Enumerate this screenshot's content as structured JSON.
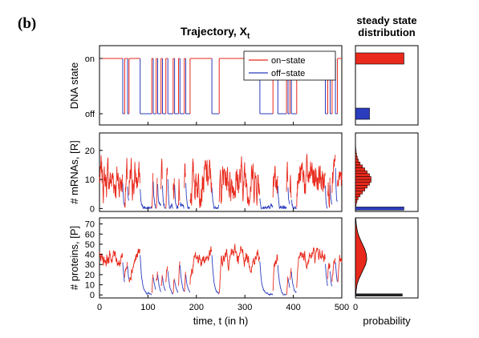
{
  "panel_label": "(b)",
  "colors": {
    "on": "#e8291c",
    "off": "#2b3dbd",
    "hist_on": "#e8291c",
    "hist_off": "#2b3dbd"
  },
  "chart_data": [
    {
      "id": "traj-dna",
      "type": "line",
      "title": "Trajectory, X",
      "title_subscript": "t",
      "ylabel": "DNA state",
      "xlim": [
        0,
        500
      ],
      "ytick_labels": [
        "on",
        "off"
      ],
      "legend": {
        "placement": "top-right",
        "entries": [
          "on−state",
          "off−state"
        ]
      },
      "x": [
        0,
        48,
        52,
        58,
        61,
        70,
        84,
        108,
        111,
        117,
        120,
        127,
        130,
        137,
        141,
        152,
        155,
        163,
        166,
        175,
        178,
        187,
        232,
        247,
        331,
        358,
        368,
        386,
        389,
        393,
        396,
        407,
        421,
        466,
        471,
        476,
        480,
        487,
        491,
        500
      ],
      "state": [
        1,
        0,
        1,
        0,
        1,
        1,
        0,
        1,
        0,
        1,
        0,
        1,
        0,
        1,
        0,
        1,
        0,
        1,
        0,
        1,
        0,
        1,
        0,
        1,
        0,
        1,
        0,
        1,
        0,
        1,
        0,
        1,
        1,
        0,
        1,
        0,
        1,
        0,
        1,
        1
      ]
    },
    {
      "id": "traj-mrna",
      "type": "line",
      "ylabel": "# mRNAs, [R]",
      "xlim": [
        0,
        500
      ],
      "ylim": [
        -1,
        26
      ],
      "yticks": [
        0,
        10,
        20
      ]
    },
    {
      "id": "traj-protein",
      "type": "line",
      "ylabel": "# proteins, [P]",
      "xlabel": "time, t (in h)",
      "xlim": [
        0,
        500
      ],
      "ylim": [
        -3,
        76
      ],
      "xticks": [
        0,
        100,
        200,
        300,
        400,
        500
      ],
      "yticks": [
        0,
        10,
        20,
        30,
        40,
        50,
        60,
        70
      ]
    },
    {
      "id": "ss-dna",
      "type": "bar",
      "title": "steady state distribution",
      "categories": [
        "on",
        "off"
      ],
      "values": [
        0.62,
        0.18
      ]
    },
    {
      "id": "ss-mrna",
      "type": "bar",
      "bins": [
        0,
        1,
        2,
        3,
        4,
        5,
        6,
        7,
        8,
        9,
        10,
        11,
        12,
        13,
        14,
        15,
        16,
        17,
        18,
        19,
        20,
        21,
        22
      ],
      "on_values": [
        0.005,
        0.01,
        0.02,
        0.035,
        0.06,
        0.09,
        0.12,
        0.15,
        0.18,
        0.2,
        0.2,
        0.18,
        0.15,
        0.12,
        0.09,
        0.06,
        0.04,
        0.025,
        0.015,
        0.01,
        0.005,
        0.003,
        0.002
      ],
      "off_value": 0.62
    },
    {
      "id": "ss-protein",
      "type": "bar",
      "xlabel": "probability",
      "xtick_labels": [
        "0"
      ],
      "curve": [
        [
          0,
          0.005
        ],
        [
          5,
          0.01
        ],
        [
          10,
          0.02
        ],
        [
          15,
          0.04
        ],
        [
          20,
          0.07
        ],
        [
          25,
          0.1
        ],
        [
          30,
          0.13
        ],
        [
          35,
          0.145
        ],
        [
          40,
          0.14
        ],
        [
          45,
          0.12
        ],
        [
          50,
          0.09
        ],
        [
          55,
          0.06
        ],
        [
          60,
          0.035
        ],
        [
          65,
          0.02
        ],
        [
          70,
          0.01
        ],
        [
          75,
          0.004
        ]
      ],
      "off_value": 0.6
    }
  ]
}
